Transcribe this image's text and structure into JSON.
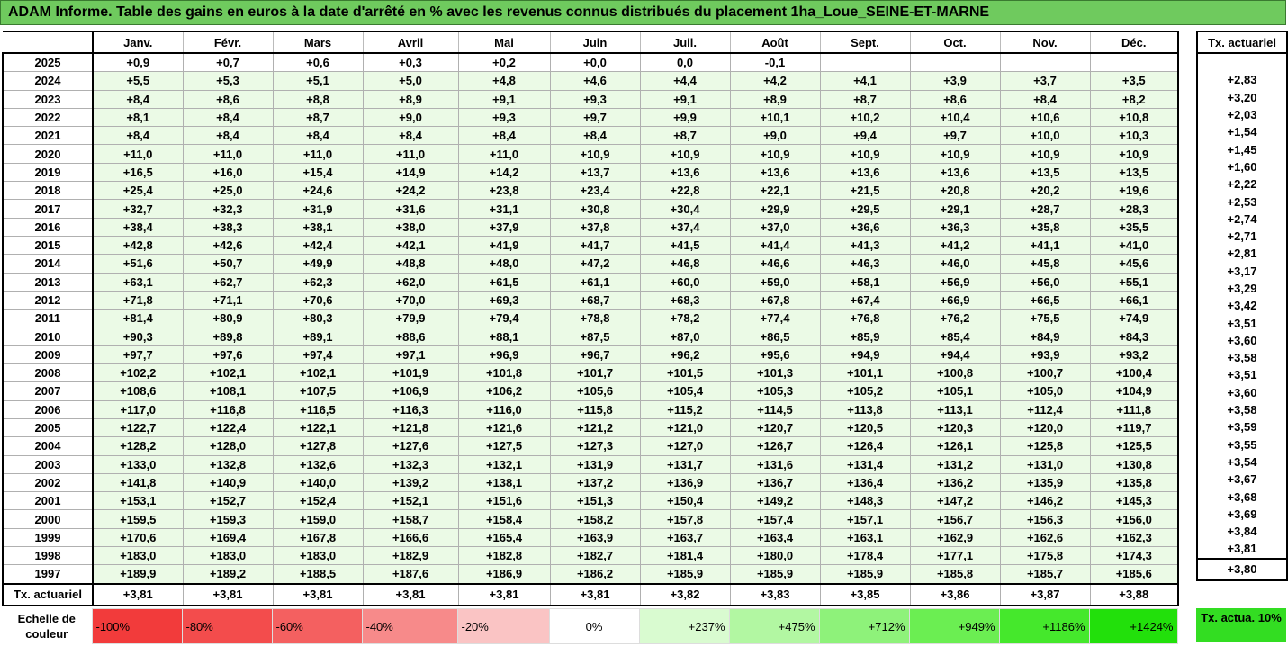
{
  "title": "ADAM Informe. Table des gains en euros à la date d'arrêté en % avec les revenus connus distribués du placement 1ha_Loue_SEINE-ET-MARNE",
  "months": [
    "Janv.",
    "Févr.",
    "Mars",
    "Avril",
    "Mai",
    "Juin",
    "Juil.",
    "Août",
    "Sept.",
    "Oct.",
    "Nov.",
    "Déc."
  ],
  "side_header": "Tx. actuariel",
  "rows": [
    {
      "year": "2025",
      "values": [
        "+0,9",
        "+0,7",
        "+0,6",
        "+0,3",
        "+0,2",
        "+0,0",
        "0,0",
        "-0,1",
        "",
        "",
        "",
        ""
      ],
      "rate": ""
    },
    {
      "year": "2024",
      "values": [
        "+5,5",
        "+5,3",
        "+5,1",
        "+5,0",
        "+4,8",
        "+4,6",
        "+4,4",
        "+4,2",
        "+4,1",
        "+3,9",
        "+3,7",
        "+3,5"
      ],
      "rate": "+2,83"
    },
    {
      "year": "2023",
      "values": [
        "+8,4",
        "+8,6",
        "+8,8",
        "+8,9",
        "+9,1",
        "+9,3",
        "+9,1",
        "+8,9",
        "+8,7",
        "+8,6",
        "+8,4",
        "+8,2"
      ],
      "rate": "+3,20"
    },
    {
      "year": "2022",
      "values": [
        "+8,1",
        "+8,4",
        "+8,7",
        "+9,0",
        "+9,3",
        "+9,7",
        "+9,9",
        "+10,1",
        "+10,2",
        "+10,4",
        "+10,6",
        "+10,8"
      ],
      "rate": "+2,03"
    },
    {
      "year": "2021",
      "values": [
        "+8,4",
        "+8,4",
        "+8,4",
        "+8,4",
        "+8,4",
        "+8,4",
        "+8,7",
        "+9,0",
        "+9,4",
        "+9,7",
        "+10,0",
        "+10,3"
      ],
      "rate": "+1,54"
    },
    {
      "year": "2020",
      "values": [
        "+11,0",
        "+11,0",
        "+11,0",
        "+11,0",
        "+11,0",
        "+10,9",
        "+10,9",
        "+10,9",
        "+10,9",
        "+10,9",
        "+10,9",
        "+10,9"
      ],
      "rate": "+1,45"
    },
    {
      "year": "2019",
      "values": [
        "+16,5",
        "+16,0",
        "+15,4",
        "+14,9",
        "+14,2",
        "+13,7",
        "+13,6",
        "+13,6",
        "+13,6",
        "+13,6",
        "+13,5",
        "+13,5"
      ],
      "rate": "+1,60"
    },
    {
      "year": "2018",
      "values": [
        "+25,4",
        "+25,0",
        "+24,6",
        "+24,2",
        "+23,8",
        "+23,4",
        "+22,8",
        "+22,1",
        "+21,5",
        "+20,8",
        "+20,2",
        "+19,6"
      ],
      "rate": "+2,22"
    },
    {
      "year": "2017",
      "values": [
        "+32,7",
        "+32,3",
        "+31,9",
        "+31,6",
        "+31,1",
        "+30,8",
        "+30,4",
        "+29,9",
        "+29,5",
        "+29,1",
        "+28,7",
        "+28,3"
      ],
      "rate": "+2,53"
    },
    {
      "year": "2016",
      "values": [
        "+38,4",
        "+38,3",
        "+38,1",
        "+38,0",
        "+37,9",
        "+37,8",
        "+37,4",
        "+37,0",
        "+36,6",
        "+36,3",
        "+35,8",
        "+35,5"
      ],
      "rate": "+2,74"
    },
    {
      "year": "2015",
      "values": [
        "+42,8",
        "+42,6",
        "+42,4",
        "+42,1",
        "+41,9",
        "+41,7",
        "+41,5",
        "+41,4",
        "+41,3",
        "+41,2",
        "+41,1",
        "+41,0"
      ],
      "rate": "+2,71"
    },
    {
      "year": "2014",
      "values": [
        "+51,6",
        "+50,7",
        "+49,9",
        "+48,8",
        "+48,0",
        "+47,2",
        "+46,8",
        "+46,6",
        "+46,3",
        "+46,0",
        "+45,8",
        "+45,6"
      ],
      "rate": "+2,81"
    },
    {
      "year": "2013",
      "values": [
        "+63,1",
        "+62,7",
        "+62,3",
        "+62,0",
        "+61,5",
        "+61,1",
        "+60,0",
        "+59,0",
        "+58,1",
        "+56,9",
        "+56,0",
        "+55,1"
      ],
      "rate": "+3,17"
    },
    {
      "year": "2012",
      "values": [
        "+71,8",
        "+71,1",
        "+70,6",
        "+70,0",
        "+69,3",
        "+68,7",
        "+68,3",
        "+67,8",
        "+67,4",
        "+66,9",
        "+66,5",
        "+66,1"
      ],
      "rate": "+3,29"
    },
    {
      "year": "2011",
      "values": [
        "+81,4",
        "+80,9",
        "+80,3",
        "+79,9",
        "+79,4",
        "+78,8",
        "+78,2",
        "+77,4",
        "+76,8",
        "+76,2",
        "+75,5",
        "+74,9"
      ],
      "rate": "+3,42"
    },
    {
      "year": "2010",
      "values": [
        "+90,3",
        "+89,8",
        "+89,1",
        "+88,6",
        "+88,1",
        "+87,5",
        "+87,0",
        "+86,5",
        "+85,9",
        "+85,4",
        "+84,9",
        "+84,3"
      ],
      "rate": "+3,51"
    },
    {
      "year": "2009",
      "values": [
        "+97,7",
        "+97,6",
        "+97,4",
        "+97,1",
        "+96,9",
        "+96,7",
        "+96,2",
        "+95,6",
        "+94,9",
        "+94,4",
        "+93,9",
        "+93,2"
      ],
      "rate": "+3,60"
    },
    {
      "year": "2008",
      "values": [
        "+102,2",
        "+102,1",
        "+102,1",
        "+101,9",
        "+101,8",
        "+101,7",
        "+101,5",
        "+101,3",
        "+101,1",
        "+100,8",
        "+100,7",
        "+100,4"
      ],
      "rate": "+3,58"
    },
    {
      "year": "2007",
      "values": [
        "+108,6",
        "+108,1",
        "+107,5",
        "+106,9",
        "+106,2",
        "+105,6",
        "+105,4",
        "+105,3",
        "+105,2",
        "+105,1",
        "+105,0",
        "+104,9"
      ],
      "rate": "+3,51"
    },
    {
      "year": "2006",
      "values": [
        "+117,0",
        "+116,8",
        "+116,5",
        "+116,3",
        "+116,0",
        "+115,8",
        "+115,2",
        "+114,5",
        "+113,8",
        "+113,1",
        "+112,4",
        "+111,8"
      ],
      "rate": "+3,60"
    },
    {
      "year": "2005",
      "values": [
        "+122,7",
        "+122,4",
        "+122,1",
        "+121,8",
        "+121,6",
        "+121,2",
        "+121,0",
        "+120,7",
        "+120,5",
        "+120,3",
        "+120,0",
        "+119,7"
      ],
      "rate": "+3,58"
    },
    {
      "year": "2004",
      "values": [
        "+128,2",
        "+128,0",
        "+127,8",
        "+127,6",
        "+127,5",
        "+127,3",
        "+127,0",
        "+126,7",
        "+126,4",
        "+126,1",
        "+125,8",
        "+125,5"
      ],
      "rate": "+3,59"
    },
    {
      "year": "2003",
      "values": [
        "+133,0",
        "+132,8",
        "+132,6",
        "+132,3",
        "+132,1",
        "+131,9",
        "+131,7",
        "+131,6",
        "+131,4",
        "+131,2",
        "+131,0",
        "+130,8"
      ],
      "rate": "+3,55"
    },
    {
      "year": "2002",
      "values": [
        "+141,8",
        "+140,9",
        "+140,0",
        "+139,2",
        "+138,1",
        "+137,2",
        "+136,9",
        "+136,7",
        "+136,4",
        "+136,2",
        "+135,9",
        "+135,8"
      ],
      "rate": "+3,54"
    },
    {
      "year": "2001",
      "values": [
        "+153,1",
        "+152,7",
        "+152,4",
        "+152,1",
        "+151,6",
        "+151,3",
        "+150,4",
        "+149,2",
        "+148,3",
        "+147,2",
        "+146,2",
        "+145,3"
      ],
      "rate": "+3,67"
    },
    {
      "year": "2000",
      "values": [
        "+159,5",
        "+159,3",
        "+159,0",
        "+158,7",
        "+158,4",
        "+158,2",
        "+157,8",
        "+157,4",
        "+157,1",
        "+156,7",
        "+156,3",
        "+156,0"
      ],
      "rate": "+3,68"
    },
    {
      "year": "1999",
      "values": [
        "+170,6",
        "+169,4",
        "+167,8",
        "+166,6",
        "+165,4",
        "+163,9",
        "+163,7",
        "+163,4",
        "+163,1",
        "+162,9",
        "+162,6",
        "+162,3"
      ],
      "rate": "+3,69"
    },
    {
      "year": "1998",
      "values": [
        "+183,0",
        "+183,0",
        "+183,0",
        "+182,9",
        "+182,8",
        "+182,7",
        "+181,4",
        "+180,0",
        "+178,4",
        "+177,1",
        "+175,8",
        "+174,3"
      ],
      "rate": "+3,84"
    },
    {
      "year": "1997",
      "values": [
        "+189,9",
        "+189,2",
        "+188,5",
        "+187,6",
        "+186,9",
        "+186,2",
        "+185,9",
        "+185,9",
        "+185,9",
        "+185,8",
        "+185,7",
        "+185,6"
      ],
      "rate": "+3,81"
    }
  ],
  "total": {
    "label": "Tx. actuariel",
    "values": [
      "+3,81",
      "+3,81",
      "+3,81",
      "+3,81",
      "+3,81",
      "+3,81",
      "+3,82",
      "+3,83",
      "+3,85",
      "+3,86",
      "+3,87",
      "+3,88"
    ],
    "rate": "+3,80"
  },
  "legend": {
    "label": "Echelle de couleur",
    "cells": [
      {
        "text": "-100%",
        "color": "#f23b3b",
        "kind": "neg"
      },
      {
        "text": "-80%",
        "color": "#f34c4c",
        "kind": "neg"
      },
      {
        "text": "-60%",
        "color": "#f46060",
        "kind": "neg"
      },
      {
        "text": "-40%",
        "color": "#f78a8a",
        "kind": "neg"
      },
      {
        "text": "-20%",
        "color": "#fac4c4",
        "kind": "neg"
      },
      {
        "text": "0%",
        "color": "#ffffff",
        "kind": "zero"
      },
      {
        "text": "+237%",
        "color": "#d9fbd0",
        "kind": "pos"
      },
      {
        "text": "+475%",
        "color": "#b2f7a2",
        "kind": "pos"
      },
      {
        "text": "+712%",
        "color": "#8ef27a",
        "kind": "pos"
      },
      {
        "text": "+949%",
        "color": "#6bee52",
        "kind": "pos"
      },
      {
        "text": "+1186%",
        "color": "#45e82c",
        "kind": "pos"
      },
      {
        "text": "+1424%",
        "color": "#22e00b",
        "kind": "pos"
      }
    ],
    "side_text": "Tx. actua. 10%"
  }
}
